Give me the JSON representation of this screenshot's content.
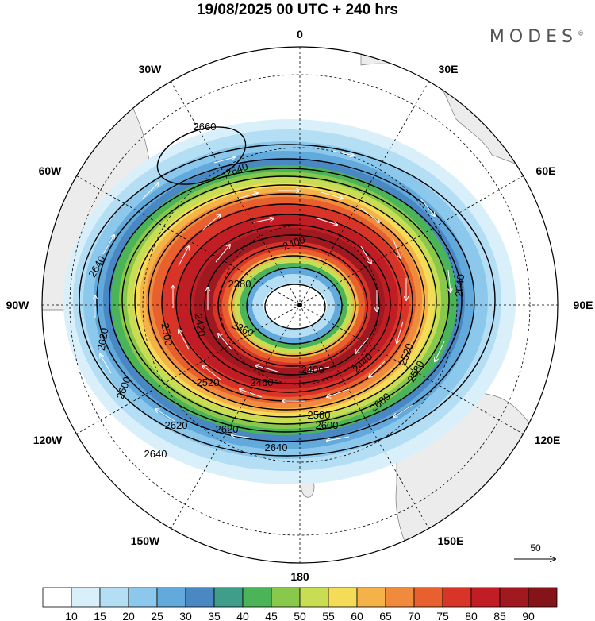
{
  "title": "19/08/2025  00 UTC  + 240 hrs",
  "logo": "MODES",
  "logo_mark": "©",
  "longitude_labels": {
    "lon_0": "0",
    "lon_30e": "30E",
    "lon_60e": "60E",
    "lon_90e": "90E",
    "lon_120e": "120E",
    "lon_150e": "150E",
    "lon_180": "180",
    "lon_150w": "150W",
    "lon_120w": "120W",
    "lon_90w": "90W",
    "lon_60w": "60W",
    "lon_30w": "30W"
  },
  "contour_labels": {
    "c2660": "2660",
    "c2640a": "2640",
    "c2640b": "2640",
    "c2640c": "2640",
    "c2640d": "2640",
    "c2640e": "2640",
    "c2620a": "2620",
    "c2620b": "2620",
    "c2620c": "2620",
    "c2600a": "2600",
    "c2600b": "2600",
    "c2600c": "2600",
    "c2580a": "2580",
    "c2580b": "2580",
    "c2520a": "2520",
    "c2520b": "2520",
    "c2500": "2500",
    "c2460": "2460",
    "c2440": "2440",
    "c2420": "2420",
    "c2400a": "2400",
    "c2400b": "2400",
    "c2380": "2380",
    "c2360": "2360"
  },
  "vector_reference": "50",
  "colorbar": {
    "ticks": [
      "10",
      "15",
      "20",
      "25",
      "30",
      "35",
      "40",
      "45",
      "50",
      "55",
      "60",
      "65",
      "70",
      "75",
      "80",
      "85",
      "90"
    ],
    "colors": [
      "#ffffff",
      "#d9f0fb",
      "#b4def4",
      "#8cc8ec",
      "#62a9dc",
      "#4a88c4",
      "#3e9e8a",
      "#4cb458",
      "#8ac84c",
      "#c8dc54",
      "#f4dc58",
      "#f4b248",
      "#f08a3c",
      "#e8602e",
      "#d83428",
      "#c01e24",
      "#a01820",
      "#841418"
    ]
  }
}
